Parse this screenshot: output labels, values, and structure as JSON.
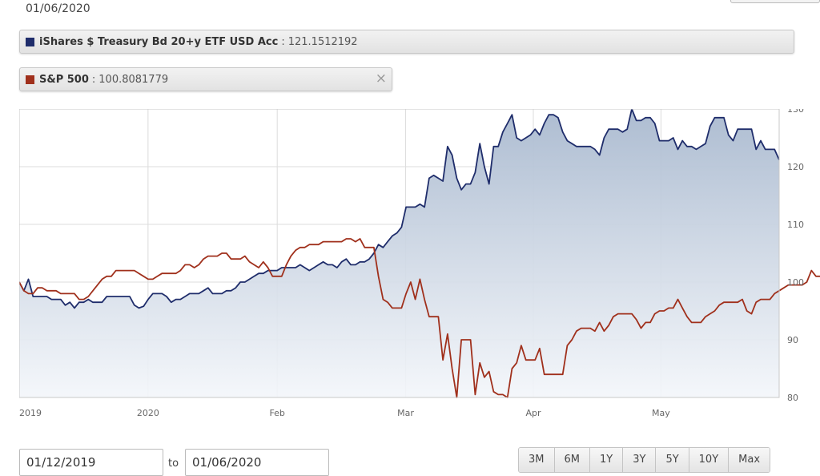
{
  "header": {
    "date": "01/06/2020"
  },
  "legend": [
    {
      "name": "iShares $ Treasury Bd 20+y ETF USD Acc",
      "sep": ":",
      "value": "121.1512192",
      "color": "#1f2d6b"
    },
    {
      "name": "S&P 500",
      "sep": ":",
      "value": "100.8081779",
      "color": "#a0301c",
      "close": "×"
    }
  ],
  "chart_data": {
    "type": "line",
    "x_ticks": [
      "2019",
      "2020",
      "Feb",
      "Mar",
      "Apr",
      "May"
    ],
    "y_ticks": [
      80,
      90,
      100,
      110,
      120,
      130
    ],
    "ylim": [
      80,
      130
    ],
    "grid": true,
    "y_axis_side": "right",
    "series": [
      {
        "name": "iShares $ Treasury Bd 20+y ETF USD Acc",
        "color": "#1f2d6b",
        "fill": true,
        "values": [
          100.0,
          98.5,
          100.5,
          97.5,
          97.5,
          97.5,
          97.5,
          97.0,
          97.0,
          97.0,
          96.0,
          96.5,
          95.5,
          96.5,
          96.5,
          97.0,
          96.5,
          96.5,
          96.5,
          97.5,
          97.5,
          97.5,
          97.5,
          97.5,
          97.5,
          96.0,
          95.5,
          95.8,
          97.0,
          98.0,
          98.0,
          98.0,
          97.5,
          96.5,
          97.0,
          97.0,
          97.5,
          98.0,
          98.0,
          98.0,
          98.5,
          99.0,
          98.0,
          98.0,
          98.0,
          98.5,
          98.5,
          99.0,
          100.0,
          100.0,
          100.5,
          101.0,
          101.5,
          101.5,
          102.0,
          102.0,
          102.0,
          102.5,
          102.5,
          102.5,
          102.5,
          103.0,
          102.5,
          102.0,
          102.5,
          103.0,
          103.5,
          103.0,
          103.0,
          102.5,
          103.5,
          104.0,
          103.0,
          103.0,
          103.5,
          103.5,
          104.0,
          105.0,
          106.5,
          106.0,
          107.0,
          108.0,
          108.5,
          109.5,
          113.0,
          113.0,
          113.0,
          113.5,
          113.0,
          118.0,
          118.5,
          118.0,
          117.5,
          123.5,
          122.0,
          118.0,
          116.0,
          117.0,
          117.0,
          119.0,
          124.0,
          120.0,
          117.0,
          123.5,
          123.5,
          126.0,
          127.5,
          129.0,
          125.0,
          124.5,
          125.0,
          125.5,
          126.5,
          125.5,
          127.5,
          129.0,
          129.0,
          128.5,
          126.0,
          124.5,
          124.0,
          123.5,
          123.5,
          123.5,
          123.5,
          123.0,
          122.0,
          125.0,
          126.5,
          126.5,
          126.5,
          126.0,
          126.5,
          130.0,
          128.0,
          128.0,
          128.5,
          128.5,
          127.5,
          124.5,
          124.5,
          124.5,
          125.0,
          123.0,
          124.5,
          123.5,
          123.5,
          123.0,
          123.5,
          124.0,
          127.0,
          128.5,
          128.5,
          128.5,
          125.5,
          124.5,
          126.5,
          126.5,
          126.5,
          126.5,
          123.0,
          124.5,
          123.0,
          123.0,
          123.0,
          121.2
        ]
      },
      {
        "name": "S&P 500",
        "color": "#a0301c",
        "fill": false,
        "values": [
          100.0,
          98.5,
          98.0,
          98.0,
          99.0,
          99.0,
          98.5,
          98.5,
          98.5,
          98.0,
          98.0,
          98.0,
          98.0,
          97.0,
          97.0,
          97.5,
          98.5,
          99.5,
          100.5,
          101.0,
          101.0,
          102.0,
          102.0,
          102.0,
          102.0,
          102.0,
          101.5,
          101.0,
          100.5,
          100.5,
          101.0,
          101.5,
          101.5,
          101.5,
          101.5,
          102.0,
          103.0,
          103.0,
          102.5,
          103.0,
          104.0,
          104.5,
          104.5,
          104.5,
          105.0,
          105.0,
          104.0,
          104.0,
          104.0,
          104.5,
          103.5,
          103.0,
          102.5,
          103.5,
          102.5,
          101.0,
          101.0,
          101.0,
          103.0,
          104.5,
          105.5,
          106.0,
          106.0,
          106.5,
          106.5,
          106.5,
          107.0,
          107.0,
          107.0,
          107.0,
          107.0,
          107.5,
          107.5,
          107.0,
          107.5,
          106.0,
          106.0,
          106.0,
          101.0,
          97.0,
          96.5,
          95.5,
          95.5,
          95.5,
          98.0,
          100.0,
          97.0,
          100.5,
          97.0,
          94.0,
          94.0,
          94.0,
          86.5,
          91.0,
          85.0,
          80.0,
          90.0,
          90.0,
          90.0,
          80.5,
          86.0,
          83.5,
          84.5,
          81.0,
          80.5,
          80.5,
          80.0,
          85.0,
          86.0,
          89.0,
          86.5,
          86.5,
          86.5,
          88.5,
          84.0,
          84.0,
          84.0,
          84.0,
          84.0,
          89.0,
          90.0,
          91.5,
          92.0,
          92.0,
          92.0,
          91.5,
          93.0,
          91.5,
          92.5,
          94.0,
          94.5,
          94.5,
          94.5,
          94.5,
          93.5,
          92.0,
          93.0,
          93.0,
          94.5,
          95.0,
          95.0,
          95.5,
          95.5,
          97.0,
          95.5,
          94.0,
          93.0,
          93.0,
          93.0,
          94.0,
          94.5,
          95.0,
          96.0,
          96.5,
          96.5,
          96.5,
          96.5,
          97.0,
          95.0,
          94.5,
          96.5,
          97.0,
          97.0,
          97.0,
          98.0,
          98.5,
          99.0,
          99.5,
          99.5,
          99.5,
          99.5,
          100.0,
          102.0,
          101.0,
          101.0,
          101.0,
          100.8
        ]
      }
    ]
  },
  "controls": {
    "from_date": "01/12/2019",
    "to_label": "to",
    "to_date": "01/06/2020",
    "ranges": [
      "3M",
      "6M",
      "1Y",
      "3Y",
      "5Y",
      "10Y",
      "Max"
    ]
  }
}
